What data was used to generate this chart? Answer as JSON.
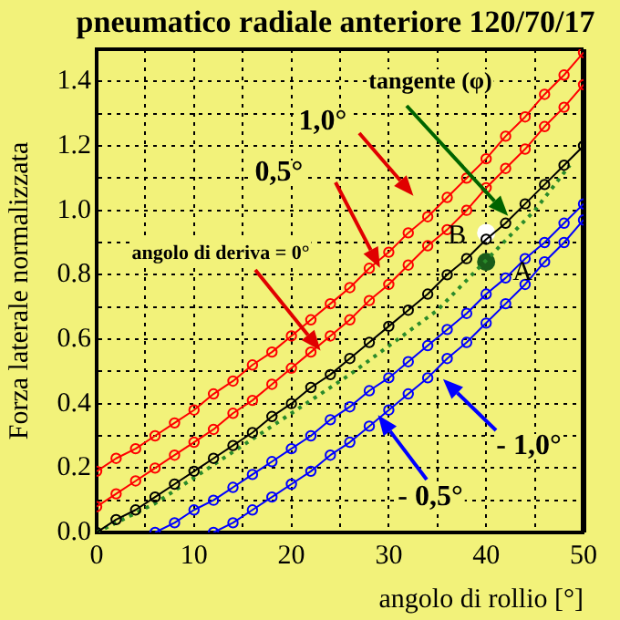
{
  "chart_data": {
    "type": "line",
    "title": "pneumatico radiale anteriore 120/70/17",
    "xlabel": "angolo di rollio [°]",
    "ylabel": "Forza laterale normalizzata",
    "xlim": [
      0,
      50
    ],
    "ylim": [
      0,
      1.5
    ],
    "xticks": [
      0,
      {
        "value": 5,
        "label": null
      },
      10,
      {
        "value": 15,
        "label": null
      },
      20,
      {
        "value": 25,
        "label": null
      },
      30,
      {
        "value": 35,
        "label": null
      },
      40,
      {
        "value": 45,
        "label": null
      },
      50
    ],
    "yticks": [
      {
        "value": 0,
        "label": "0.0"
      },
      {
        "value": 0.1,
        "label": null
      },
      0.2,
      {
        "value": 0.3,
        "label": null
      },
      0.4,
      {
        "value": 0.5,
        "label": null
      },
      0.6,
      {
        "value": 0.7,
        "label": null
      },
      0.8,
      {
        "value": 0.9,
        "label": null
      },
      {
        "value": 1,
        "label": "1.0"
      },
      {
        "value": 1.1,
        "label": null
      },
      1.2,
      {
        "value": 1.3,
        "label": null
      },
      1.4
    ],
    "grid": true,
    "marker": "circle",
    "annotations": [
      "1,0°",
      "0,5°",
      "angolo di deriva = 0°",
      {
        "text": "- 0,5°",
        "x": 28.5,
        "y": 0.38
      },
      {
        "text": "- 1,0°",
        "x": 35.1,
        "y": 0.49
      },
      "tangente (φ)"
    ],
    "series": [
      {
        "color": "#ff0000",
        "x": [
          0,
          2,
          4,
          6,
          8,
          10,
          12,
          14,
          16,
          18,
          20,
          22,
          24,
          26,
          28,
          30,
          32,
          34,
          36,
          38,
          40,
          42,
          44,
          46,
          48,
          50
        ],
        "values": [
          0.19,
          0.23,
          0.26,
          0.3,
          0.34,
          0.38,
          0.43,
          0.47,
          0.52,
          0.56,
          0.61,
          0.66,
          0.71,
          0.76,
          0.82,
          0.87,
          0.93,
          0.98,
          1.04,
          1.1,
          1.16,
          1.23,
          1.29,
          1.36,
          1.42,
          1.49
        ]
      },
      {
        "color": "#ff0000",
        "x": [
          0,
          2,
          4,
          6,
          8,
          10,
          12,
          14,
          16,
          18,
          20,
          22,
          24,
          26,
          28,
          30,
          32,
          34,
          36,
          38,
          40,
          42,
          44,
          46,
          48,
          50
        ],
        "values": [
          0.08,
          0.12,
          0.16,
          0.2,
          0.24,
          0.28,
          0.32,
          0.37,
          0.41,
          0.46,
          0.51,
          0.56,
          0.61,
          0.66,
          0.72,
          0.77,
          0.83,
          0.89,
          0.94,
          1.0,
          1.07,
          1.13,
          1.19,
          1.26,
          1.32,
          1.39
        ]
      },
      {
        "color": "#000000",
        "x": [
          0,
          2,
          4,
          6,
          8,
          10,
          12,
          14,
          16,
          18,
          20,
          22,
          24,
          26,
          28,
          30,
          32,
          34,
          36,
          38,
          40,
          42,
          44,
          46,
          48,
          50
        ],
        "values": [
          0,
          0.04,
          0.07,
          0.11,
          0.15,
          0.19,
          0.23,
          0.27,
          0.31,
          0.36,
          0.4,
          0.45,
          0.49,
          0.54,
          0.59,
          0.64,
          0.69,
          0.74,
          0.8,
          0.85,
          0.91,
          0.96,
          1.02,
          1.08,
          1.14,
          1.2
        ]
      },
      {
        "color": "#0000ff",
        "x": [
          6,
          8,
          10,
          12,
          14,
          16,
          18,
          20,
          22,
          24,
          26,
          28,
          30,
          32,
          34,
          36,
          38,
          40,
          42,
          44,
          46,
          48,
          50
        ],
        "values": [
          0,
          0.03,
          0.07,
          0.1,
          0.14,
          0.18,
          0.22,
          0.26,
          0.3,
          0.35,
          0.39,
          0.44,
          0.48,
          0.53,
          0.58,
          0.63,
          0.68,
          0.74,
          0.79,
          0.85,
          0.9,
          0.96,
          1.02
        ]
      },
      {
        "color": "#0000ff",
        "x": [
          12,
          14,
          16,
          18,
          20,
          22,
          24,
          26,
          28,
          30,
          32,
          34,
          36,
          38,
          40,
          42,
          44,
          46,
          48,
          50
        ],
        "values": [
          0,
          0.03,
          0.07,
          0.11,
          0.15,
          0.19,
          0.24,
          0.28,
          0.33,
          0.38,
          0.43,
          0.48,
          0.54,
          0.59,
          0.65,
          0.71,
          0.77,
          0.84,
          0.9,
          0.97
        ]
      },
      {
        "color": "#2a8a2a",
        "marker": "none",
        "line_style": "dotted",
        "x": [
          0,
          6,
          16,
          26,
          35,
          45,
          48.6
        ],
        "values": [
          0,
          0.09,
          0.29,
          0.49,
          0.69,
          1.0,
          1.14
        ]
      },
      {
        "name": "A",
        "type": "scatter",
        "color": "#1a5c1a",
        "x": [
          40
        ],
        "values": [
          0.84
        ]
      },
      {
        "name": "B",
        "type": "scatter",
        "color": "#ffffff",
        "x": [
          40
        ],
        "values": [
          0.93
        ]
      }
    ]
  }
}
